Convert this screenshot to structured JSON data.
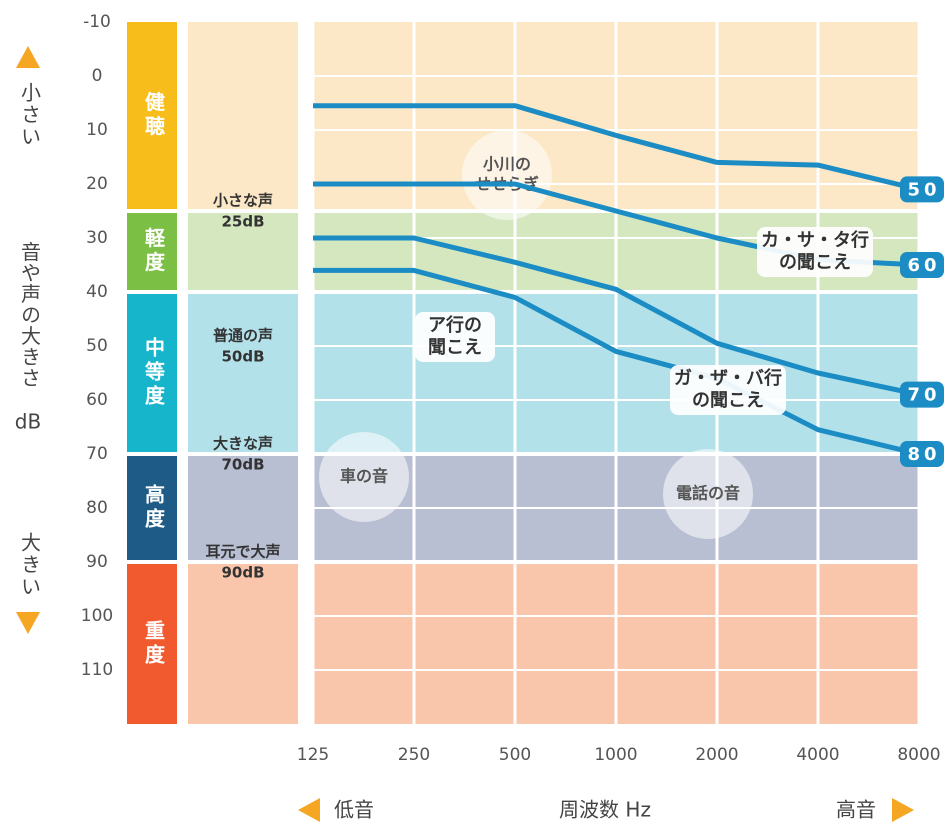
{
  "chart_data": {
    "type": "line",
    "x_label": "周波数 Hz",
    "x_low": "低音",
    "x_high": "高音",
    "y_label": "音や声の大きさ",
    "y_unit": "dB",
    "y_top": "小さい",
    "y_bottom": "大きい",
    "x": [
      125,
      250,
      500,
      1000,
      2000,
      4000,
      8000
    ],
    "xlim": [
      125,
      8000
    ],
    "xticks": [
      125,
      250,
      500,
      1000,
      2000,
      4000,
      8000
    ],
    "log_x": true,
    "ylim": [
      -10,
      120
    ],
    "yticks": [
      -10,
      0,
      10,
      20,
      30,
      40,
      50,
      60,
      70,
      80,
      90,
      100,
      110
    ],
    "y_inverted": true,
    "grid": true,
    "series": [
      {
        "name": "50",
        "color": "#1b8cc4",
        "values": [
          5.5,
          5.5,
          5.5,
          11,
          16,
          16.5,
          21
        ]
      },
      {
        "name": "60",
        "color": "#1b8cc4",
        "values": [
          20,
          20,
          20,
          25,
          30,
          34,
          35
        ]
      },
      {
        "name": "70",
        "color": "#1b8cc4",
        "values": [
          30,
          30,
          34.5,
          39.5,
          49.5,
          55,
          59
        ]
      },
      {
        "name": "80",
        "color": "#1b8cc4",
        "values": [
          36,
          36,
          41,
          51,
          56,
          65.5,
          70
        ]
      }
    ],
    "bands": [
      {
        "name": "健聴",
        "from": -10,
        "to": 25,
        "color": "#f6bd1b",
        "fill": "#fce7c6"
      },
      {
        "name": "軽度",
        "from": 25,
        "to": 40,
        "color": "#7cbf45",
        "fill": "#d5e7bf"
      },
      {
        "name": "中等度",
        "from": 40,
        "to": 70,
        "color": "#17b5cb",
        "fill": "#b3e1ea"
      },
      {
        "name": "高度",
        "from": 70,
        "to": 90,
        "color": "#1f5b87",
        "fill": "#b8bfd3"
      },
      {
        "name": "重度",
        "from": 90,
        "to": 120,
        "color": "#f15a2f",
        "fill": "#f9c6ab"
      }
    ],
    "levels": [
      {
        "name": "小さな声",
        "label": "25dB",
        "value": 25
      },
      {
        "name": "普通の声",
        "label": "50dB",
        "value": 50
      },
      {
        "name": "大きな声",
        "label": "70dB",
        "value": 70
      },
      {
        "name": "耳元で大声",
        "label": "90dB",
        "value": 90
      }
    ],
    "sounds": [
      {
        "text": [
          "小川の",
          "せせらぎ"
        ]
      },
      {
        "text": [
          "車の音"
        ]
      },
      {
        "text": [
          "電話の音"
        ]
      }
    ],
    "callouts": [
      {
        "text": [
          "ア行の",
          "聞こえ"
        ]
      },
      {
        "text": [
          "ガ・ザ・バ行",
          "の聞こえ"
        ]
      },
      {
        "text": [
          "カ・サ・タ行",
          "の聞こえ"
        ]
      }
    ]
  }
}
